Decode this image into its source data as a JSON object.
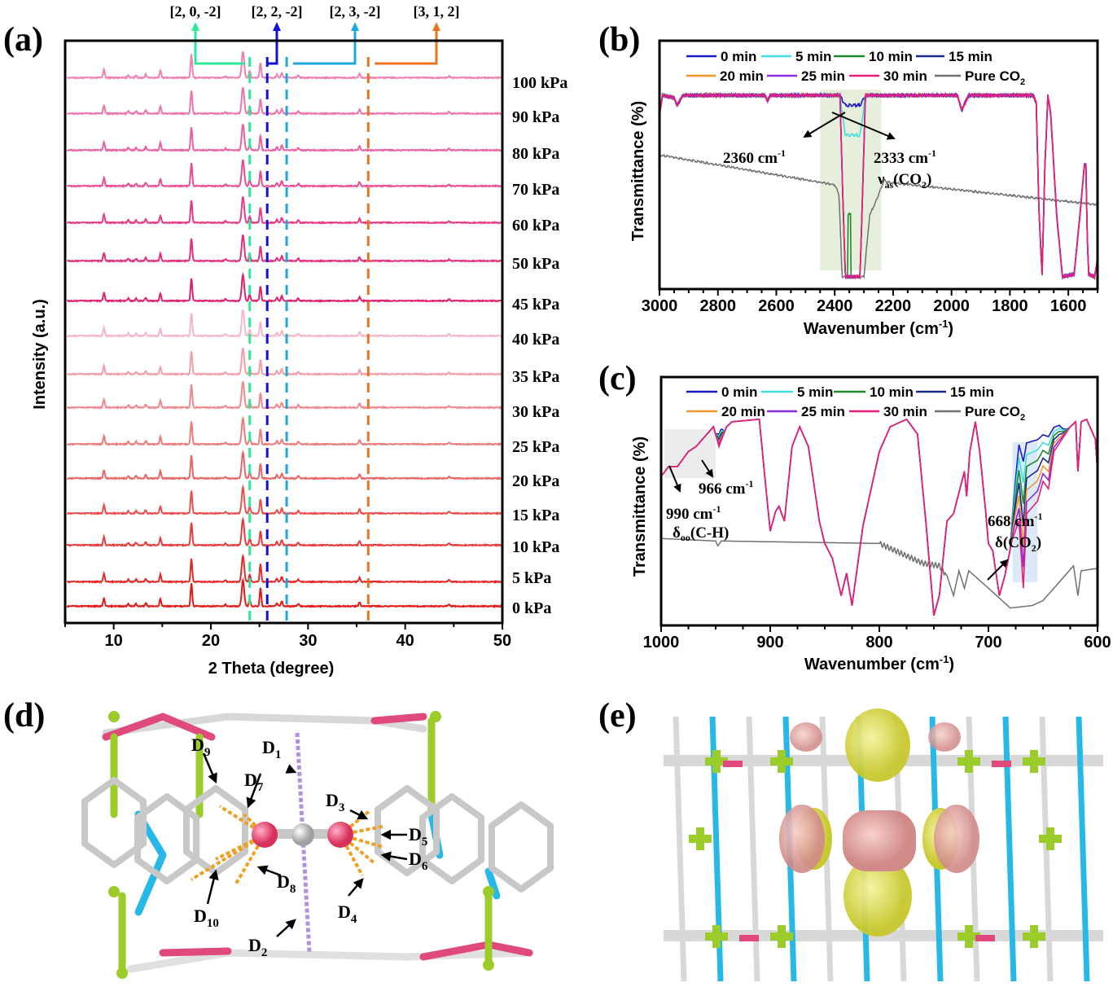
{
  "panels": {
    "a": "(a)",
    "b": "(b)",
    "c": "(c)",
    "d": "(d)",
    "e": "(e)"
  },
  "chart_data": [
    {
      "id": "a",
      "type": "line",
      "title": "",
      "xlabel": "2 Theta (degree)",
      "ylabel": "Intensity (a.u.)",
      "xlim": [
        5,
        50
      ],
      "xticks": [
        10,
        20,
        30,
        40,
        50
      ],
      "grid": false,
      "series": [
        {
          "name": "100 kPa",
          "color": "#f07fb4"
        },
        {
          "name": "90 kPa",
          "color": "#ee74ac"
        },
        {
          "name": "80 kPa",
          "color": "#ec5fa0"
        },
        {
          "name": "70 kPa",
          "color": "#ea4d93"
        },
        {
          "name": "60 kPa",
          "color": "#e83a88"
        },
        {
          "name": "50 kPa",
          "color": "#e42d7c"
        },
        {
          "name": "45 kPa",
          "color": "#e0206f"
        },
        {
          "name": "40 kPa",
          "color": "#f5b7c6"
        },
        {
          "name": "35 kPa",
          "color": "#f19ea8"
        },
        {
          "name": "30 kPa",
          "color": "#ee8a8f"
        },
        {
          "name": "25 kPa",
          "color": "#ec7b7c"
        },
        {
          "name": "20 kPa",
          "color": "#ea6666"
        },
        {
          "name": "15 kPa",
          "color": "#e85050"
        },
        {
          "name": "10 kPa",
          "color": "#e63c3c"
        },
        {
          "name": "5 kPa",
          "color": "#e42a28"
        },
        {
          "name": "0 kPa",
          "color": "#e31a17"
        }
      ],
      "peaks_2theta": [
        9.0,
        11.5,
        12.3,
        13.3,
        14.8,
        18.0,
        21.5,
        23.3,
        24.0,
        25.1,
        26.8,
        27.3,
        29.0,
        35.3,
        44.5
      ],
      "peak_rel_intensity": [
        10,
        3,
        3,
        4,
        9,
        28,
        2,
        32,
        8,
        18,
        4,
        6,
        3,
        5,
        2
      ],
      "reflections": [
        {
          "label": "[2, 0, -2]",
          "two_theta": 24.0,
          "color": "#2ee89a"
        },
        {
          "label": "[2, 2, -2]",
          "two_theta": 25.8,
          "color": "#1010d8"
        },
        {
          "label": "[2, 3, -2]",
          "two_theta": 27.8,
          "color": "#1ea8e0"
        },
        {
          "label": "[3, 1, 2]",
          "two_theta": 36.2,
          "color": "#e87422"
        }
      ]
    },
    {
      "id": "b",
      "type": "line",
      "xlabel_main": "Wavenumber (cm",
      "xlabel_sup": "-1",
      "xlabel_end": ")",
      "ylabel": "Transmittance (%)",
      "xlim": [
        3000,
        1500
      ],
      "xticks": [
        3000,
        2800,
        2600,
        2400,
        2200,
        2000,
        1800,
        1600
      ],
      "series": [
        {
          "name": "0 min",
          "color": "#1a1ac8"
        },
        {
          "name": "5 min",
          "color": "#40e0e0"
        },
        {
          "name": "10 min",
          "color": "#1e8a2a"
        },
        {
          "name": "15 min",
          "color": "#1a2a8a"
        },
        {
          "name": "20 min",
          "color": "#f0962a"
        },
        {
          "name": "25 min",
          "color": "#8a2ae0"
        },
        {
          "name": "30 min",
          "color": "#e81e78"
        },
        {
          "name": "Pure CO",
          "sub": "2",
          "color": "#707070"
        }
      ],
      "profile_30min": [
        [
          3000,
          0.7
        ],
        [
          2990,
          0.78
        ],
        [
          2950,
          0.77
        ],
        [
          2940,
          0.74
        ],
        [
          2920,
          0.78
        ],
        [
          2640,
          0.78
        ],
        [
          2630,
          0.76
        ],
        [
          2620,
          0.78
        ],
        [
          2380,
          0.78
        ],
        [
          2375,
          0.05
        ],
        [
          2320,
          0.05
        ],
        [
          2300,
          0.78
        ],
        [
          1980,
          0.78
        ],
        [
          1965,
          0.72
        ],
        [
          1950,
          0.76
        ],
        [
          1940,
          0.78
        ],
        [
          1720,
          0.78
        ],
        [
          1710,
          0.75
        ],
        [
          1700,
          0.3
        ],
        [
          1690,
          0.06
        ],
        [
          1680,
          0.5
        ],
        [
          1670,
          0.78
        ],
        [
          1660,
          0.7
        ],
        [
          1640,
          0.3
        ],
        [
          1620,
          0.05
        ],
        [
          1580,
          0.06
        ],
        [
          1560,
          0.3
        ],
        [
          1545,
          0.5
        ],
        [
          1540,
          0.5
        ],
        [
          1535,
          0.2
        ],
        [
          1530,
          0.06
        ],
        [
          1510,
          0.05
        ],
        [
          1500,
          0.12
        ]
      ],
      "band_min_by_series": [
        0.74,
        0.62,
        0.05,
        0.05,
        0.05,
        0.05,
        0.05
      ],
      "profile_pure_co2": [
        [
          3000,
          0.54
        ],
        [
          2400,
          0.42
        ],
        [
          2385,
          0.38
        ],
        [
          2375,
          0.05
        ],
        [
          2300,
          0.05
        ],
        [
          2280,
          0.3
        ],
        [
          2260,
          0.35
        ],
        [
          2230,
          0.44
        ],
        [
          2220,
          0.43
        ],
        [
          1500,
          0.34
        ]
      ],
      "highlight_range": [
        2450,
        2240
      ],
      "annotations": [
        {
          "text": "2360 cm",
          "sup": "-1"
        },
        {
          "text": "2333 cm",
          "sup": "-1"
        },
        {
          "text": "ν",
          "sub": "as",
          "rest": "(CO",
          "sub2": "2",
          "end": ")"
        }
      ]
    },
    {
      "id": "c",
      "type": "line",
      "xlabel_main": "Wavenumber (cm",
      "xlabel_sup": "-1",
      "xlabel_end": ")",
      "ylabel": "Transmittance (%)",
      "xlim": [
        1000,
        600
      ],
      "xticks": [
        1000,
        900,
        800,
        700,
        600
      ],
      "series": [
        {
          "name": "0 min",
          "color": "#1a1ac8"
        },
        {
          "name": "5 min",
          "color": "#40e0e0"
        },
        {
          "name": "10 min",
          "color": "#1e8a2a"
        },
        {
          "name": "15 min",
          "color": "#1a2a8a"
        },
        {
          "name": "20 min",
          "color": "#f0962a"
        },
        {
          "name": "25 min",
          "color": "#8a2ae0"
        },
        {
          "name": "30 min",
          "color": "#e81e78"
        },
        {
          "name": "Pure CO",
          "sub": "2",
          "color": "#707070"
        }
      ],
      "profile_30min": [
        [
          1000,
          0.6
        ],
        [
          993,
          0.64
        ],
        [
          985,
          0.64
        ],
        [
          975,
          0.7
        ],
        [
          968,
          0.72
        ],
        [
          960,
          0.76
        ],
        [
          952,
          0.8
        ],
        [
          947,
          0.72
        ],
        [
          940,
          0.8
        ],
        [
          935,
          0.82
        ],
        [
          910,
          0.83
        ],
        [
          905,
          0.6
        ],
        [
          900,
          0.38
        ],
        [
          895,
          0.46
        ],
        [
          892,
          0.48
        ],
        [
          887,
          0.42
        ],
        [
          880,
          0.72
        ],
        [
          873,
          0.8
        ],
        [
          865,
          0.72
        ],
        [
          855,
          0.42
        ],
        [
          850,
          0.33
        ],
        [
          843,
          0.27
        ],
        [
          835,
          0.12
        ],
        [
          830,
          0.21
        ],
        [
          825,
          0.08
        ],
        [
          815,
          0.4
        ],
        [
          800,
          0.7
        ],
        [
          790,
          0.8
        ],
        [
          775,
          0.83
        ],
        [
          765,
          0.77
        ],
        [
          757,
          0.4
        ],
        [
          750,
          0.04
        ],
        [
          745,
          0.12
        ],
        [
          738,
          0.42
        ],
        [
          732,
          0.45
        ],
        [
          722,
          0.62
        ],
        [
          720,
          0.52
        ],
        [
          717,
          0.7
        ],
        [
          712,
          0.82
        ],
        [
          708,
          0.7
        ],
        [
          703,
          0.48
        ],
        [
          700,
          0.33
        ],
        [
          696,
          0.3
        ],
        [
          690,
          0.12
        ],
        [
          685,
          0.2
        ],
        [
          678,
          0.35
        ],
        [
          672,
          0.42
        ],
        [
          668,
          0.15
        ],
        [
          665,
          0.45
        ],
        [
          655,
          0.5
        ],
        [
          650,
          0.58
        ],
        [
          645,
          0.55
        ],
        [
          640,
          0.7
        ],
        [
          625,
          0.8
        ],
        [
          620,
          0.82
        ],
        [
          618,
          0.62
        ],
        [
          615,
          0.82
        ],
        [
          610,
          0.83
        ],
        [
          602,
          0.75
        ],
        [
          600,
          0.62
        ]
      ],
      "profile_pure_co2": [
        [
          1000,
          0.35
        ],
        [
          950,
          0.34
        ],
        [
          948,
          0.32
        ],
        [
          945,
          0.34
        ],
        [
          800,
          0.33
        ],
        [
          760,
          0.25
        ],
        [
          745,
          0.24
        ],
        [
          738,
          0.2
        ],
        [
          732,
          0.12
        ],
        [
          727,
          0.22
        ],
        [
          722,
          0.15
        ],
        [
          718,
          0.22
        ],
        [
          700,
          0.15
        ],
        [
          680,
          0.07
        ],
        [
          660,
          0.08
        ],
        [
          650,
          0.1
        ],
        [
          630,
          0.2
        ],
        [
          622,
          0.24
        ],
        [
          618,
          0.12
        ],
        [
          615,
          0.22
        ],
        [
          600,
          0.23
        ]
      ],
      "highlight_ranges": [
        [
          997,
          950
        ],
        [
          678,
          655
        ]
      ],
      "annotations": [
        {
          "text": "966 cm",
          "sup": "-1"
        },
        {
          "text": "990 cm",
          "sup": "-1"
        },
        {
          "text": "δ",
          "sub": "oo",
          "rest": "(C-H)"
        },
        {
          "text": "668 cm",
          "sup": "-1"
        },
        {
          "text": "δ(CO",
          "sub": "2",
          "end": ")"
        }
      ]
    }
  ],
  "structure_d": {
    "distance_labels": [
      {
        "main": "D",
        "sub": "1"
      },
      {
        "main": "D",
        "sub": "2"
      },
      {
        "main": "D",
        "sub": "3"
      },
      {
        "main": "D",
        "sub": "4"
      },
      {
        "main": "D",
        "sub": "5"
      },
      {
        "main": "D",
        "sub": "6"
      },
      {
        "main": "D",
        "sub": "7"
      },
      {
        "main": "D",
        "sub": "8"
      },
      {
        "main": "D",
        "sub": "9"
      },
      {
        "main": "D",
        "sub": "10"
      }
    ]
  }
}
